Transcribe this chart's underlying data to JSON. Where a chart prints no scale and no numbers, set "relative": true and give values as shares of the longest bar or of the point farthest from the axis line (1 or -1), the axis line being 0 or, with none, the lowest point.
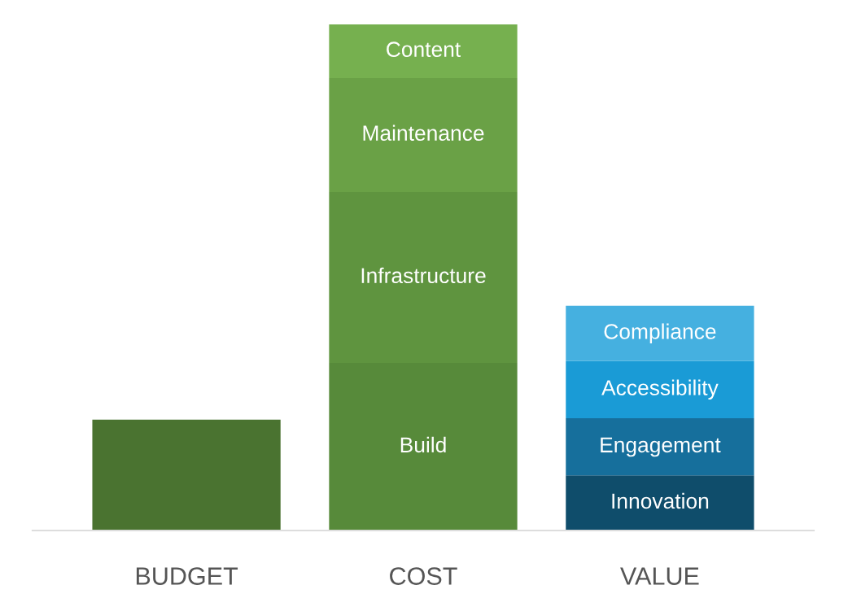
{
  "chart_data": {
    "type": "bar",
    "stacked": true,
    "relative": true,
    "legend": false,
    "grid": false,
    "categories": [
      "BUDGET",
      "COST",
      "VALUE"
    ],
    "series": [
      {
        "color": "#4a7330",
        "values": [
          0.219,
          null,
          null
        ]
      },
      {
        "name": "Build",
        "color": "#578a3a",
        "values": [
          null,
          0.331,
          null
        ]
      },
      {
        "name": "Infrastructure",
        "color": "#5f943f",
        "values": [
          null,
          0.338,
          null
        ]
      },
      {
        "name": "Maintenance",
        "color": "#6aa146",
        "values": [
          null,
          0.225,
          null
        ]
      },
      {
        "name": "Content",
        "color": "#76b04f",
        "values": [
          null,
          0.106,
          null
        ]
      },
      {
        "name": "Innovation",
        "color": "#0f4d6b",
        "values": [
          null,
          null,
          0.109
        ]
      },
      {
        "name": "Engagement",
        "color": "#166f9c",
        "values": [
          null,
          null,
          0.113
        ]
      },
      {
        "name": "Accessibility",
        "color": "#1a9bd6",
        "values": [
          null,
          null,
          0.113
        ]
      },
      {
        "name": "Compliance",
        "color": "#45b0e0",
        "values": [
          null,
          null,
          0.109
        ]
      }
    ]
  }
}
